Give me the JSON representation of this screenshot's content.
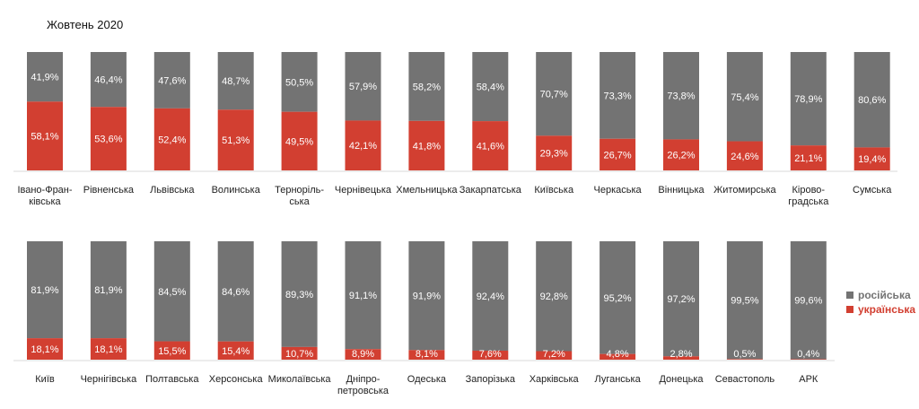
{
  "title": "Жовтень 2020",
  "legend": [
    {
      "name": "російська",
      "color": "#737373"
    },
    {
      "name": "українська",
      "color": "#d23f31"
    }
  ],
  "chart_data": [
    {
      "type": "bar",
      "stacked": true,
      "title": "Жовтень 2020",
      "ylim": [
        0,
        100
      ],
      "categories": [
        "Івано-Франківська",
        "Рівненська",
        "Львівська",
        "Волинська",
        "Тернопільська",
        "Чернівецька",
        "Хмельницька",
        "Закарпатська",
        "Київська",
        "Черкаська",
        "Вінницька",
        "Житомирська",
        "Кіровоградська",
        "Сумська"
      ],
      "category_lines": [
        [
          "Івано-Фран-",
          "ківська"
        ],
        [
          "Рівненська"
        ],
        [
          "Львівська"
        ],
        [
          "Волинська"
        ],
        [
          "Терноpіль-",
          "ська"
        ],
        [
          "Чернівецька"
        ],
        [
          "Хмельницька"
        ],
        [
          "Закарпатська"
        ],
        [
          "Київська"
        ],
        [
          "Черкаська"
        ],
        [
          "Вінницька"
        ],
        [
          "Житомирська"
        ],
        [
          "Кірово-",
          "градська"
        ],
        [
          "Сумська"
        ]
      ],
      "series": [
        {
          "name": "українська",
          "values": [
            58.1,
            53.6,
            52.4,
            51.3,
            49.5,
            42.1,
            41.8,
            41.6,
            29.3,
            26.7,
            26.2,
            24.6,
            21.1,
            19.4
          ],
          "labels": [
            "58,1%",
            "53,6%",
            "52,4%",
            "51,3%",
            "49,5%",
            "42,1%",
            "41,8%",
            "41,6%",
            "29,3%",
            "26,7%",
            "26,2%",
            "24,6%",
            "21,1%",
            "19,4%"
          ]
        },
        {
          "name": "російська",
          "values": [
            41.9,
            46.4,
            47.6,
            48.7,
            50.5,
            57.9,
            58.2,
            58.4,
            70.7,
            73.3,
            73.8,
            75.4,
            78.9,
            80.6
          ],
          "labels": [
            "41,9%",
            "46,4%",
            "47,6%",
            "48,7%",
            "50,5%",
            "57,9%",
            "58,2%",
            "58,4%",
            "70,7%",
            "73,3%",
            "73,8%",
            "75,4%",
            "78,9%",
            "80,6%"
          ]
        }
      ]
    },
    {
      "type": "bar",
      "stacked": true,
      "ylim": [
        0,
        100
      ],
      "categories": [
        "Київ",
        "Чернігівська",
        "Полтавська",
        "Херсонська",
        "Миколаївська",
        "Дніпропетровська",
        "Одеська",
        "Запорізька",
        "Харківська",
        "Луганська",
        "Донецька",
        "Севастополь",
        "АРК"
      ],
      "category_lines": [
        [
          "Київ"
        ],
        [
          "Чернігівська"
        ],
        [
          "Полтавська"
        ],
        [
          "Херсонська"
        ],
        [
          "Миколаївська"
        ],
        [
          "Дніпро-",
          "петровська"
        ],
        [
          "Одеська"
        ],
        [
          "Запорізька"
        ],
        [
          "Харківська"
        ],
        [
          "Луганська"
        ],
        [
          "Донецька"
        ],
        [
          "Севастополь"
        ],
        [
          "АРК"
        ]
      ],
      "series": [
        {
          "name": "українська",
          "values": [
            18.1,
            18.1,
            15.5,
            15.4,
            10.7,
            8.9,
            8.1,
            7.6,
            7.2,
            4.8,
            2.8,
            0.5,
            0.4
          ],
          "labels": [
            "18,1%",
            "18,1%",
            "15,5%",
            "15,4%",
            "10,7%",
            "8,9%",
            "8,1%",
            "7,6%",
            "7,2%",
            "4,8%",
            "2,8%",
            "0,5%",
            "0,4%"
          ]
        },
        {
          "name": "російська",
          "values": [
            81.9,
            81.9,
            84.5,
            84.6,
            89.3,
            91.1,
            91.9,
            92.4,
            92.8,
            95.2,
            97.2,
            99.5,
            99.6
          ],
          "labels": [
            "81,9%",
            "81,9%",
            "84,5%",
            "84,6%",
            "89,3%",
            "91,1%",
            "91,9%",
            "92,4%",
            "92,8%",
            "95,2%",
            "97,2%",
            "99,5%",
            "99,6%"
          ]
        }
      ]
    }
  ]
}
